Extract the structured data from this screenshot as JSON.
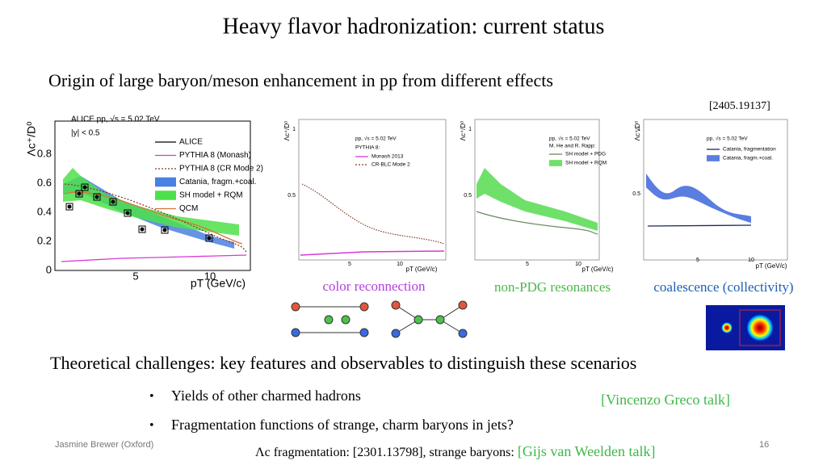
{
  "title": "Heavy flavor hadronization: current status",
  "subtitle": "Origin of large baryon/meson enhancement in pp from different effects",
  "reference": "[2405.19137]",
  "plots": [
    {
      "y_label": "Λc⁺/D⁰",
      "x_label": "pT (GeV/c)",
      "yticks": [
        "0",
        "0.2",
        "0.4",
        "0.6",
        "0.8"
      ],
      "xticks": [
        "5",
        "10"
      ],
      "header": [
        "ALICE pp, √s = 5.02 TeV",
        "|y| < 0.5"
      ],
      "legend": [
        "ALICE",
        "PYTHIA 8 (Monash)",
        "PYTHIA 8 (CR Mode 2)",
        "Catania, fragm.+coal.",
        "SH model + RQM",
        "QCM"
      ]
    },
    {
      "y_label": "Λc⁺/D⁰",
      "x_label": "pT (GeV/c)",
      "yticks": [
        "0.5",
        "1"
      ],
      "xticks": [
        "5",
        "10"
      ],
      "header": [
        "pp, √s = 5.02 TeV",
        "PYTHIA 8:"
      ],
      "legend": [
        "Monash 2013",
        "CR-BLC Mode 2"
      ]
    },
    {
      "y_label": "Λc⁺/D⁰",
      "x_label": "pT (GeV/c)",
      "yticks": [
        "0.5",
        "1"
      ],
      "xticks": [
        "5",
        "10"
      ],
      "header": [
        "pp, √s = 5.02 TeV",
        "M. He and R. Rapp:"
      ],
      "legend": [
        "SH model + PDG",
        "SH model + RQM"
      ]
    },
    {
      "y_label": "Λc⁺/D⁰",
      "x_label": "pT (GeV/c)",
      "yticks": [
        "0.5",
        "1"
      ],
      "xticks": [
        "5",
        "10"
      ],
      "header": [
        "pp, √s = 5.02 TeV"
      ],
      "legend": [
        "Catania, fragmentation",
        "Catania, fragm.+coal."
      ]
    }
  ],
  "plot_captions": [
    "color reconnection",
    "non-PDG resonances",
    "coalescence (collectivity)"
  ],
  "section": "Theoretical challenges: key features and observables to distinguish these scenarios",
  "bullets": [
    "Yields of other charmed hadrons",
    "Fragmentation functions of strange, charm baryons in jets?"
  ],
  "talk": "[Vincenzo Greco talk]",
  "bottom_note": {
    "prefix": "Λc fragmentation: [2301.13798], strange baryons: ",
    "link": "[Gijs van Weelden talk]"
  },
  "footer": {
    "author": "Jasmine Brewer (Oxford)",
    "page": "16"
  }
}
